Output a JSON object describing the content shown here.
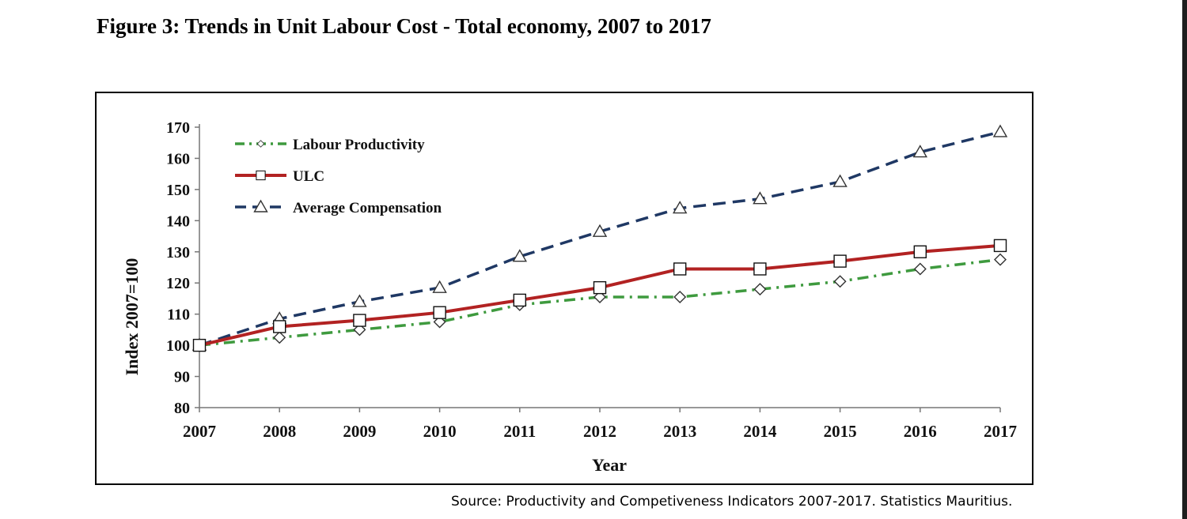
{
  "figure": {
    "title": "Figure 3: Trends in Unit Labour Cost - Total economy, 2007 to 2017",
    "source": "Source: Productivity and Competiveness Indicators 2007-2017. Statistics Mauritius."
  },
  "chart_data": {
    "type": "line",
    "title": "Figure 3: Trends in Unit Labour Cost - Total economy, 2007 to 2017",
    "xlabel": "Year",
    "ylabel": "Index 2007=100",
    "x": [
      2007,
      2008,
      2009,
      2010,
      2011,
      2012,
      2013,
      2014,
      2015,
      2016,
      2017
    ],
    "ylim": [
      80,
      170
    ],
    "yticks": [
      80,
      90,
      100,
      110,
      120,
      130,
      140,
      150,
      160,
      170
    ],
    "grid": false,
    "legend_position": "top-left",
    "series": [
      {
        "name": "Labour Productivity",
        "values": [
          100,
          102.5,
          105,
          107.5,
          113,
          115.5,
          115.5,
          118,
          120.5,
          124.5,
          127.5
        ],
        "color": "#3e9a3e",
        "marker": "diamond",
        "line_style": "dash-dot"
      },
      {
        "name": "ULC",
        "values": [
          100,
          106,
          108,
          110.5,
          114.5,
          118.5,
          124.5,
          124.5,
          127,
          130,
          132
        ],
        "color": "#b22222",
        "marker": "square",
        "line_style": "solid"
      },
      {
        "name": "Average Compensation",
        "values": [
          100,
          108.5,
          114,
          118.5,
          128.5,
          136.5,
          144,
          147,
          152.5,
          162,
          168.5
        ],
        "color": "#1f3864",
        "marker": "triangle",
        "line_style": "dashed"
      }
    ]
  }
}
